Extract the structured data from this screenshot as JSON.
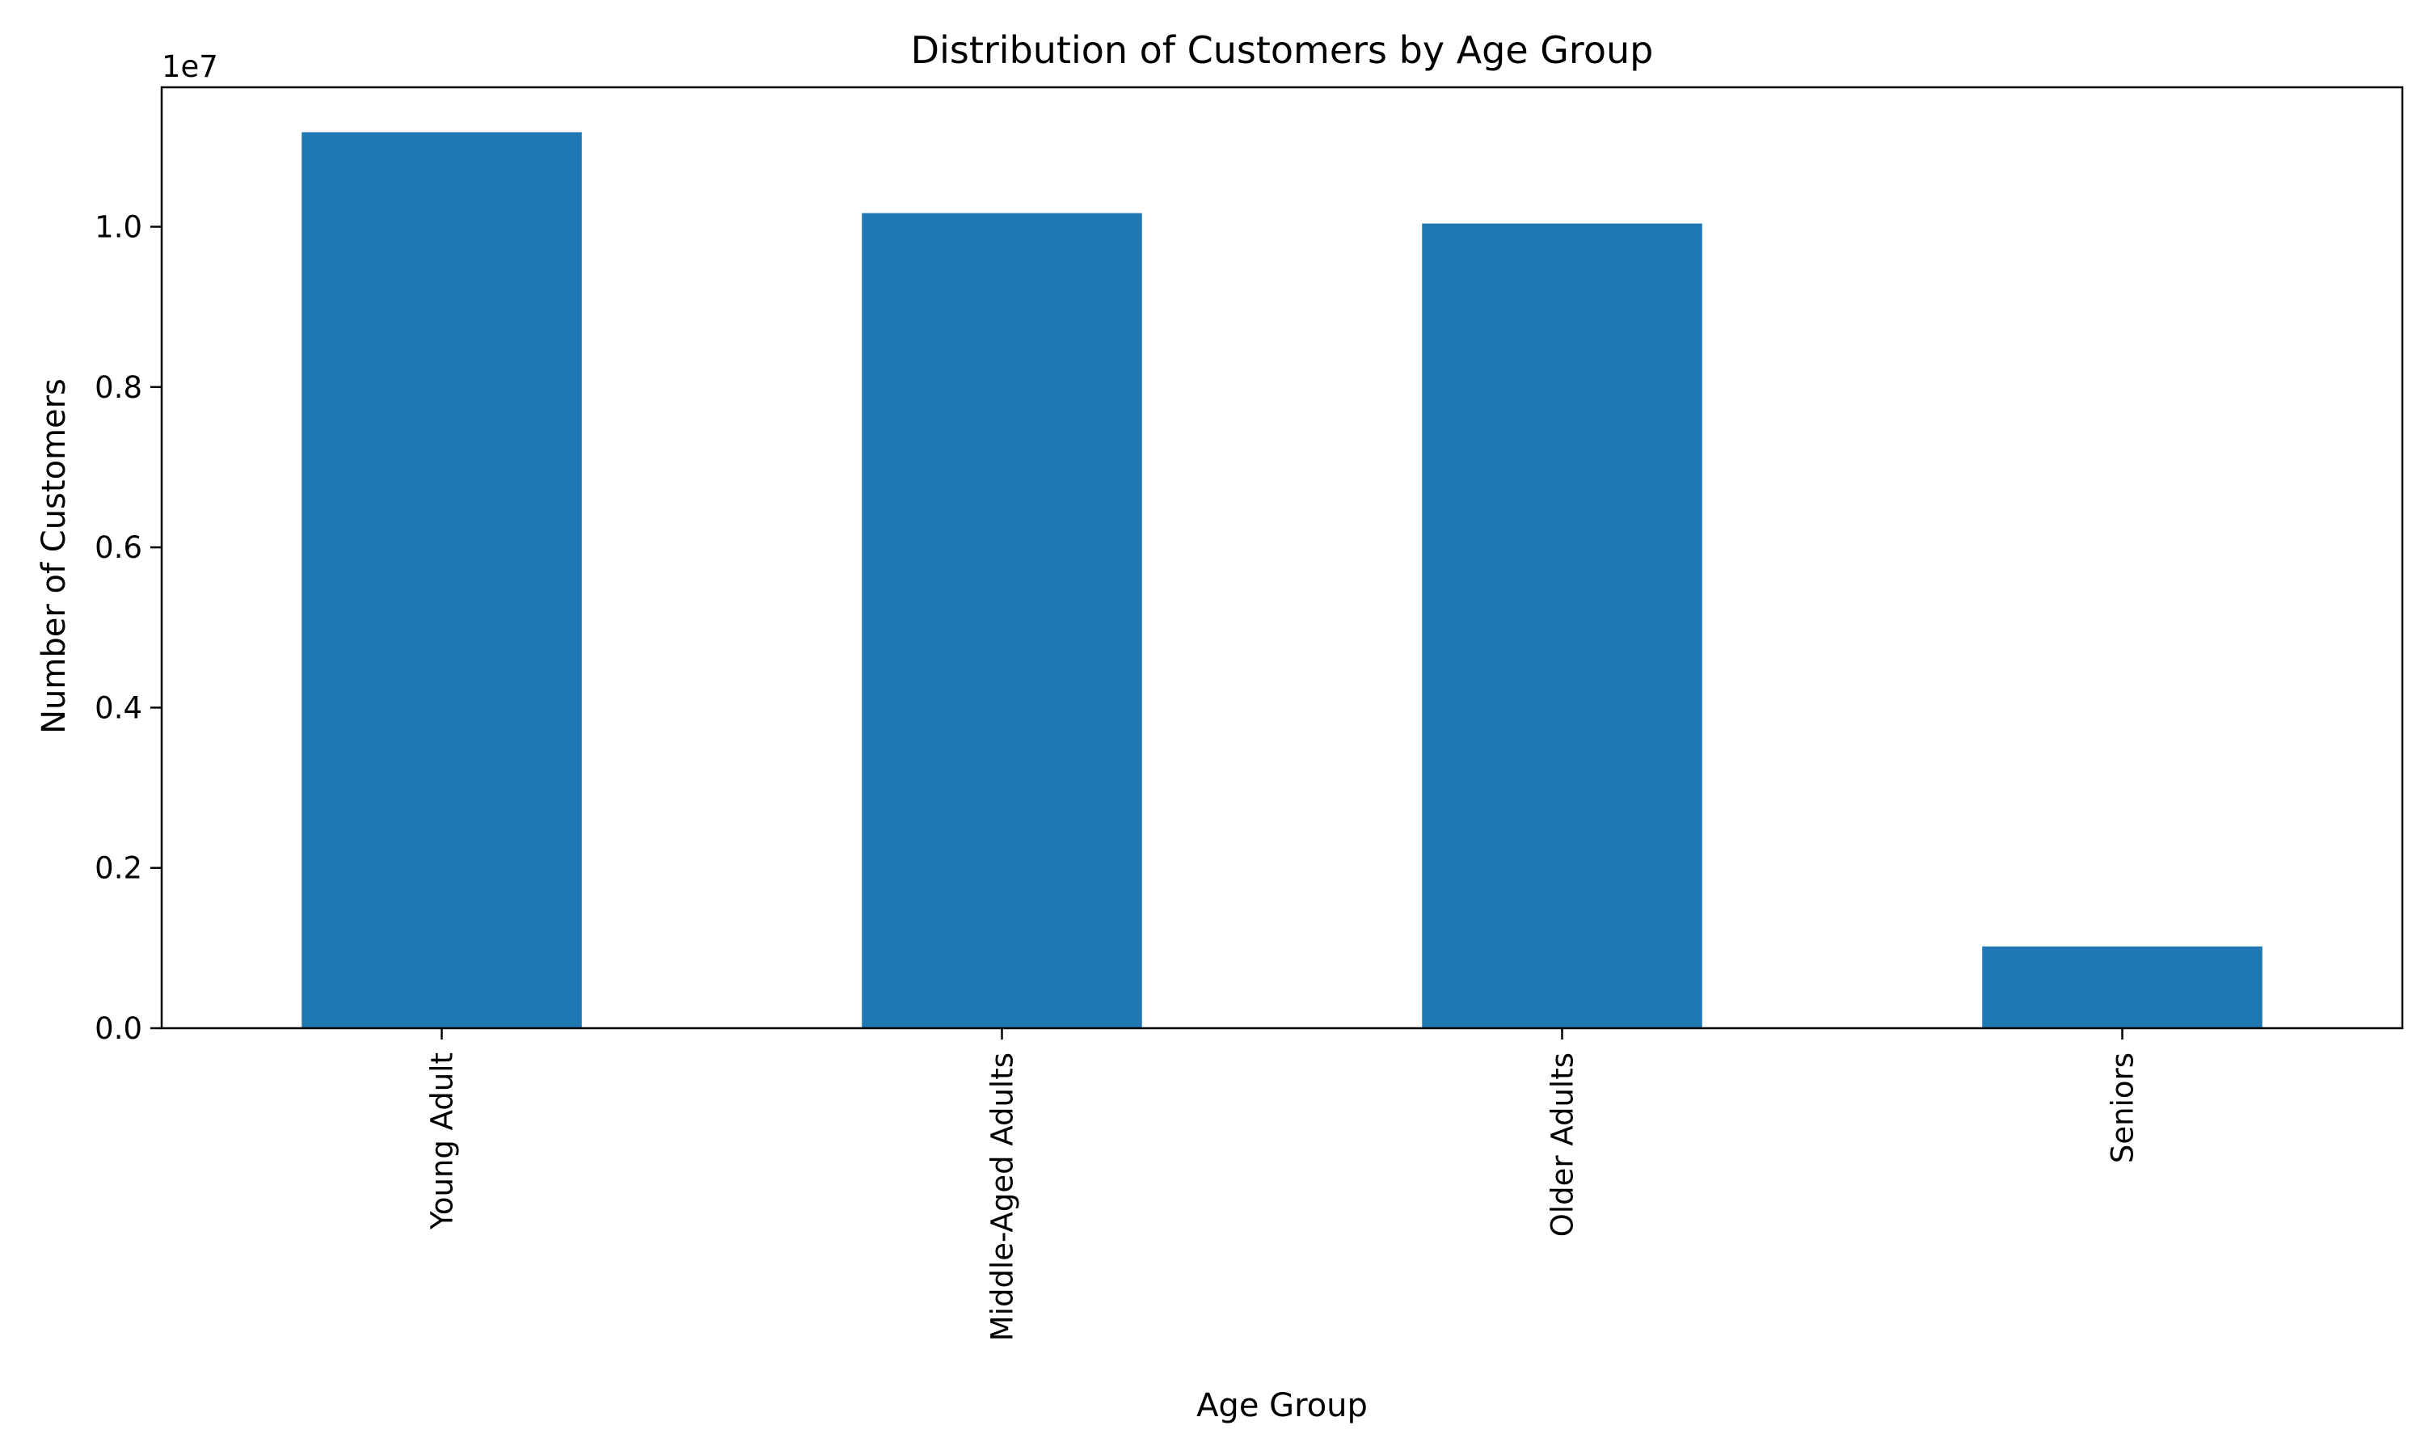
{
  "chart_data": {
    "type": "bar",
    "title": "Distribution of Customers by Age Group",
    "xlabel": "Age Group",
    "ylabel": "Number of Customers",
    "categories": [
      "Young Adult",
      "Middle-Aged Adults",
      "Older Adults",
      "Seniors"
    ],
    "values": [
      11180000,
      10170000,
      10040000,
      1020000
    ],
    "ylim": [
      0,
      11740000
    ],
    "yticks": [
      0,
      2000000,
      4000000,
      6000000,
      8000000,
      10000000
    ],
    "ytick_labels": [
      "0.0",
      "0.2",
      "0.4",
      "0.6",
      "0.8",
      "1.0"
    ],
    "offset_text": "1e7",
    "bar_color": "#1f77b4",
    "grid": false,
    "legend": "none"
  }
}
